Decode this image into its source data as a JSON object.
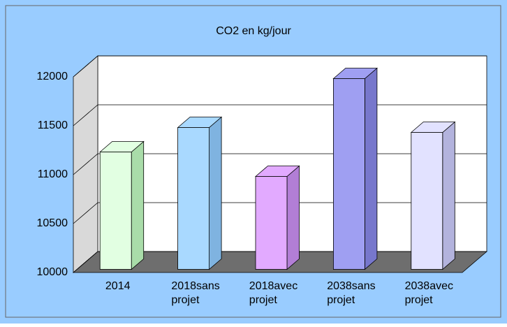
{
  "chart_data": {
    "type": "bar3d",
    "title": "CO2 en kg/jour",
    "categories": [
      "2014",
      "2018sans projet",
      "2018avec projet",
      "2038sans projet",
      "2038avec projet"
    ],
    "values": [
      11200,
      11450,
      10950,
      11950,
      11400
    ],
    "colors": [
      "#e2ffe2",
      "#a9d9ff",
      "#e2aaff",
      "#9f9ff2",
      "#e2e2ff"
    ],
    "side_colors": [
      "#a9dca9",
      "#7fb3e0",
      "#b27ed6",
      "#7777cc",
      "#b3b3dd"
    ],
    "ylim": [
      10000,
      12000
    ],
    "yticks": [
      10000,
      10500,
      11000,
      11500,
      12000
    ],
    "grid": true
  }
}
